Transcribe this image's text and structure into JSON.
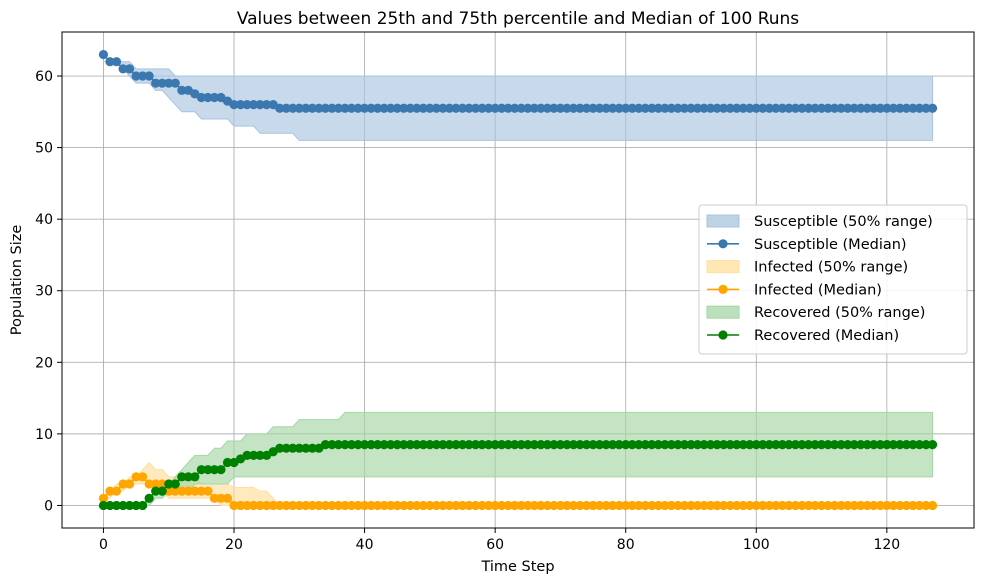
{
  "chart_data": {
    "type": "line",
    "title": "Values between 25th and 75th percentile and Median of 100 Runs",
    "xlabel": "Time Step",
    "ylabel": "Population Size",
    "xlim": [
      -6.35,
      133.35
    ],
    "ylim": [
      -3.15,
      66.15
    ],
    "xticks": [
      0,
      20,
      40,
      60,
      80,
      100,
      120
    ],
    "yticks": [
      0,
      10,
      20,
      30,
      40,
      50,
      60
    ],
    "grid": true,
    "legend_position": "center-right",
    "n_steps": 128,
    "series": [
      {
        "name": "Susceptible",
        "range_label": "Susceptible (50% range)",
        "median_label": "Susceptible (Median)",
        "color": "#3b78b0",
        "fill_color": "#a9c4df",
        "median_segments": [
          [
            0,
            63
          ],
          [
            1,
            62
          ],
          [
            3,
            61
          ],
          [
            5,
            60
          ],
          [
            8,
            59
          ],
          [
            12,
            58
          ],
          [
            14,
            57.5
          ],
          [
            15,
            57
          ],
          [
            19,
            56.5
          ],
          [
            20,
            56
          ],
          [
            27,
            55.5
          ]
        ],
        "upper_segments": [
          [
            0,
            62
          ],
          [
            5,
            61
          ],
          [
            11,
            60
          ],
          [
            127,
            60
          ]
        ],
        "lower_segments": [
          [
            0,
            62
          ],
          [
            3,
            61
          ],
          [
            4,
            60
          ],
          [
            5,
            59
          ],
          [
            8,
            58
          ],
          [
            10,
            57
          ],
          [
            11,
            56
          ],
          [
            12,
            55
          ],
          [
            15,
            54
          ],
          [
            20,
            53
          ],
          [
            24,
            52
          ],
          [
            30,
            51
          ],
          [
            127,
            51
          ]
        ]
      },
      {
        "name": "Infected",
        "range_label": "Infected (50% range)",
        "median_label": "Infected (Median)",
        "color": "#ffa500",
        "fill_color": "#ffdf9e",
        "median_segments": [
          [
            0,
            1
          ],
          [
            1,
            2
          ],
          [
            3,
            3
          ],
          [
            5,
            4
          ],
          [
            7,
            3
          ],
          [
            9,
            3
          ],
          [
            10,
            2
          ],
          [
            17,
            1
          ],
          [
            20,
            0
          ]
        ],
        "upper_segments": [
          [
            0,
            1
          ],
          [
            1,
            2
          ],
          [
            2,
            3
          ],
          [
            4,
            4
          ],
          [
            6,
            5
          ],
          [
            7,
            6
          ],
          [
            8,
            5
          ],
          [
            10,
            4
          ],
          [
            15,
            3
          ],
          [
            20,
            2.5
          ],
          [
            24,
            2
          ],
          [
            26,
            1
          ],
          [
            27,
            0
          ],
          [
            127,
            0
          ]
        ],
        "lower_segments": [
          [
            0,
            1
          ],
          [
            2,
            2
          ],
          [
            4,
            3
          ],
          [
            8,
            2
          ],
          [
            10,
            1
          ],
          [
            18,
            0
          ],
          [
            127,
            0
          ]
        ]
      },
      {
        "name": "Recovered",
        "range_label": "Recovered (50% range)",
        "median_label": "Recovered (Median)",
        "color": "#008000",
        "fill_color": "#a5d6a5",
        "median_segments": [
          [
            0,
            0
          ],
          [
            7,
            1
          ],
          [
            8,
            2
          ],
          [
            10,
            3
          ],
          [
            12,
            4
          ],
          [
            15,
            5
          ],
          [
            19,
            6
          ],
          [
            21,
            6.5
          ],
          [
            22,
            7
          ],
          [
            26,
            7.5
          ],
          [
            27,
            8
          ],
          [
            34,
            8.5
          ]
        ],
        "upper_segments": [
          [
            0,
            0
          ],
          [
            7,
            1
          ],
          [
            8,
            2
          ],
          [
            10,
            3
          ],
          [
            11,
            4
          ],
          [
            12,
            5
          ],
          [
            13,
            6
          ],
          [
            14,
            7
          ],
          [
            17,
            8
          ],
          [
            19,
            9
          ],
          [
            22,
            10
          ],
          [
            26,
            11
          ],
          [
            30,
            12
          ],
          [
            37,
            13
          ],
          [
            127,
            13
          ]
        ],
        "lower_segments": [
          [
            0,
            0
          ],
          [
            8,
            1
          ],
          [
            10,
            2
          ],
          [
            14,
            3
          ],
          [
            20,
            4
          ],
          [
            127,
            4
          ]
        ]
      }
    ]
  }
}
